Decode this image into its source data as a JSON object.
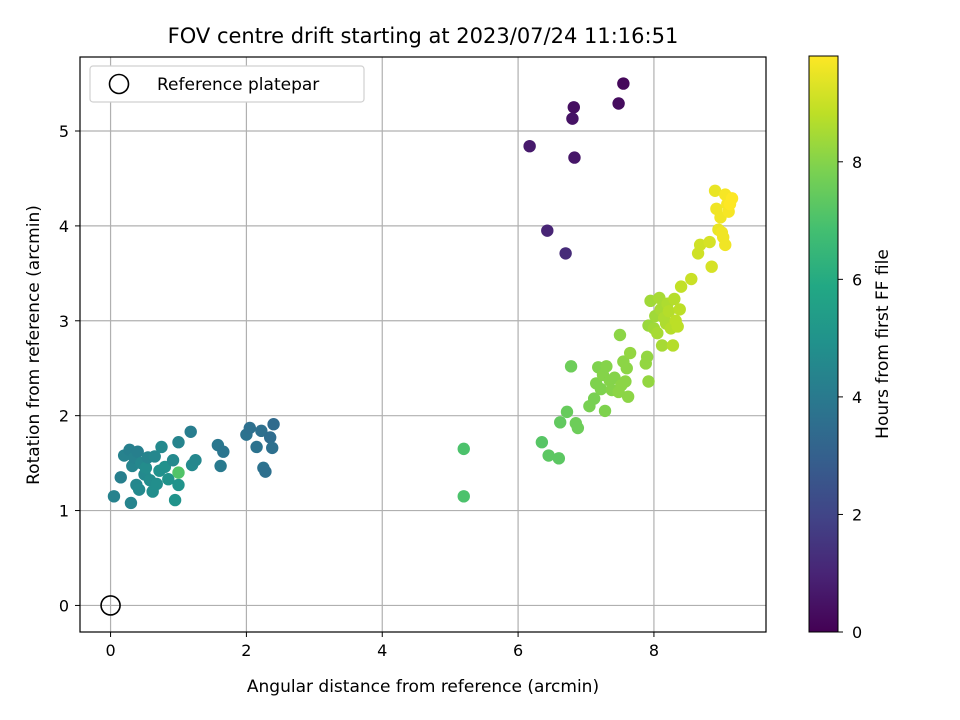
{
  "chart_data": {
    "type": "scatter",
    "title": "FOV centre drift starting at 2023/07/24 11:16:51",
    "xlabel": "Angular distance from reference (arcmin)",
    "ylabel": "Rotation from reference (arcmin)",
    "xlim": [
      -0.45,
      9.65
    ],
    "ylim": [
      -0.28,
      5.78
    ],
    "xticks": [
      0,
      2,
      4,
      6,
      8
    ],
    "yticks": [
      0,
      1,
      2,
      3,
      4,
      5
    ],
    "grid": true,
    "legend": {
      "placement": "top-left",
      "entries": [
        "Reference platepar"
      ]
    },
    "reference_point": {
      "x": 0,
      "y": 0,
      "label": "Reference platepar"
    },
    "colorbar": {
      "label": "Hours from first FF file",
      "colormap": "viridis",
      "range": [
        0,
        9.8
      ],
      "ticks": [
        0,
        2,
        4,
        6,
        8
      ]
    },
    "series": [
      {
        "points": [
          [
            7.55,
            5.5,
            0.2
          ],
          [
            6.82,
            5.25,
            0.4
          ],
          [
            7.48,
            5.29,
            0.3
          ],
          [
            6.8,
            5.13,
            0.5
          ],
          [
            6.17,
            4.84,
            0.7
          ],
          [
            6.83,
            4.72,
            0.6
          ],
          [
            6.43,
            3.95,
            1.0
          ],
          [
            6.7,
            3.71,
            1.2
          ],
          [
            0.05,
            1.15,
            4.3
          ],
          [
            0.15,
            1.35,
            4.2
          ],
          [
            0.2,
            1.58,
            4.3
          ],
          [
            0.28,
            1.64,
            4.2
          ],
          [
            0.3,
            1.08,
            4.4
          ],
          [
            0.32,
            1.47,
            4.4
          ],
          [
            0.35,
            1.56,
            4.3
          ],
          [
            0.38,
            1.27,
            4.5
          ],
          [
            0.4,
            1.62,
            4.2
          ],
          [
            0.42,
            1.22,
            4.6
          ],
          [
            0.45,
            1.5,
            4.5
          ],
          [
            0.5,
            1.38,
            4.6
          ],
          [
            0.52,
            1.45,
            4.7
          ],
          [
            0.55,
            1.56,
            4.4
          ],
          [
            0.58,
            1.32,
            4.7
          ],
          [
            0.62,
            1.2,
            4.8
          ],
          [
            0.65,
            1.57,
            4.5
          ],
          [
            0.68,
            1.28,
            4.8
          ],
          [
            0.72,
            1.42,
            4.9
          ],
          [
            0.75,
            1.67,
            4.6
          ],
          [
            0.8,
            1.46,
            4.9
          ],
          [
            0.85,
            1.33,
            5.0
          ],
          [
            0.92,
            1.53,
            4.6
          ],
          [
            0.95,
            1.11,
            5.0
          ],
          [
            1.0,
            1.72,
            4.4
          ],
          [
            1.0,
            1.27,
            5.0
          ],
          [
            1.18,
            1.83,
            4.1
          ],
          [
            1.2,
            1.48,
            4.6
          ],
          [
            1.25,
            1.53,
            4.5
          ],
          [
            1.0,
            1.4,
            7.1
          ],
          [
            1.58,
            1.69,
            3.9
          ],
          [
            1.62,
            1.47,
            4.0
          ],
          [
            1.66,
            1.62,
            3.8
          ],
          [
            2.0,
            1.8,
            3.7
          ],
          [
            2.05,
            1.87,
            3.6
          ],
          [
            2.15,
            1.67,
            3.7
          ],
          [
            2.22,
            1.84,
            3.6
          ],
          [
            2.25,
            1.45,
            3.7
          ],
          [
            2.28,
            1.41,
            3.6
          ],
          [
            2.35,
            1.77,
            3.5
          ],
          [
            2.38,
            1.66,
            3.6
          ],
          [
            2.4,
            1.91,
            3.4
          ],
          [
            5.2,
            1.65,
            7.0
          ],
          [
            5.2,
            1.15,
            7.0
          ],
          [
            6.35,
            1.72,
            7.2
          ],
          [
            6.45,
            1.58,
            7.3
          ],
          [
            6.6,
            1.55,
            7.3
          ],
          [
            6.62,
            1.93,
            7.4
          ],
          [
            6.72,
            2.04,
            7.5
          ],
          [
            6.78,
            2.52,
            7.6
          ],
          [
            6.85,
            1.92,
            7.6
          ],
          [
            6.88,
            1.87,
            7.6
          ],
          [
            7.05,
            2.1,
            7.8
          ],
          [
            7.12,
            2.18,
            7.8
          ],
          [
            7.15,
            2.34,
            7.9
          ],
          [
            7.18,
            2.51,
            7.9
          ],
          [
            7.22,
            2.28,
            7.9
          ],
          [
            7.25,
            2.43,
            8.0
          ],
          [
            7.28,
            2.05,
            7.9
          ],
          [
            7.3,
            2.52,
            8.0
          ],
          [
            7.35,
            2.37,
            8.0
          ],
          [
            7.38,
            2.27,
            8.0
          ],
          [
            7.42,
            2.4,
            8.0
          ],
          [
            7.48,
            2.25,
            8.1
          ],
          [
            7.5,
            2.85,
            8.1
          ],
          [
            7.52,
            2.32,
            8.1
          ],
          [
            7.55,
            2.57,
            8.1
          ],
          [
            7.58,
            2.36,
            8.1
          ],
          [
            7.6,
            2.5,
            8.1
          ],
          [
            7.62,
            2.2,
            8.1
          ],
          [
            7.65,
            2.66,
            8.2
          ],
          [
            7.88,
            2.55,
            8.2
          ],
          [
            7.9,
            2.62,
            8.2
          ],
          [
            7.92,
            2.36,
            8.2
          ],
          [
            7.92,
            2.95,
            8.3
          ],
          [
            7.95,
            3.21,
            8.4
          ],
          [
            8.0,
            2.92,
            8.4
          ],
          [
            8.02,
            3.05,
            8.4
          ],
          [
            8.05,
            2.87,
            8.5
          ],
          [
            8.08,
            3.24,
            8.5
          ],
          [
            8.1,
            3.12,
            8.5
          ],
          [
            8.12,
            2.74,
            8.5
          ],
          [
            8.15,
            3.03,
            8.6
          ],
          [
            8.18,
            2.97,
            8.6
          ],
          [
            8.2,
            3.18,
            8.6
          ],
          [
            8.22,
            3.1,
            8.7
          ],
          [
            8.25,
            2.92,
            8.7
          ],
          [
            8.28,
            2.74,
            8.7
          ],
          [
            8.3,
            3.23,
            8.7
          ],
          [
            8.32,
            3.0,
            8.8
          ],
          [
            8.35,
            2.94,
            8.8
          ],
          [
            8.38,
            3.12,
            8.8
          ],
          [
            8.4,
            3.36,
            8.9
          ],
          [
            8.55,
            3.44,
            9.0
          ],
          [
            8.65,
            3.71,
            9.1
          ],
          [
            8.68,
            3.8,
            9.1
          ],
          [
            8.82,
            3.83,
            9.2
          ],
          [
            8.85,
            3.57,
            9.2
          ],
          [
            8.9,
            4.37,
            9.5
          ],
          [
            8.92,
            4.18,
            9.6
          ],
          [
            8.95,
            3.96,
            9.5
          ],
          [
            8.98,
            4.09,
            9.6
          ],
          [
            9.0,
            3.93,
            9.6
          ],
          [
            9.02,
            3.88,
            9.6
          ],
          [
            9.05,
            3.8,
            9.6
          ],
          [
            9.05,
            4.33,
            9.7
          ],
          [
            9.08,
            4.23,
            9.7
          ],
          [
            9.1,
            4.15,
            9.7
          ],
          [
            9.12,
            4.23,
            9.8
          ],
          [
            9.15,
            4.29,
            9.8
          ]
        ]
      }
    ]
  }
}
